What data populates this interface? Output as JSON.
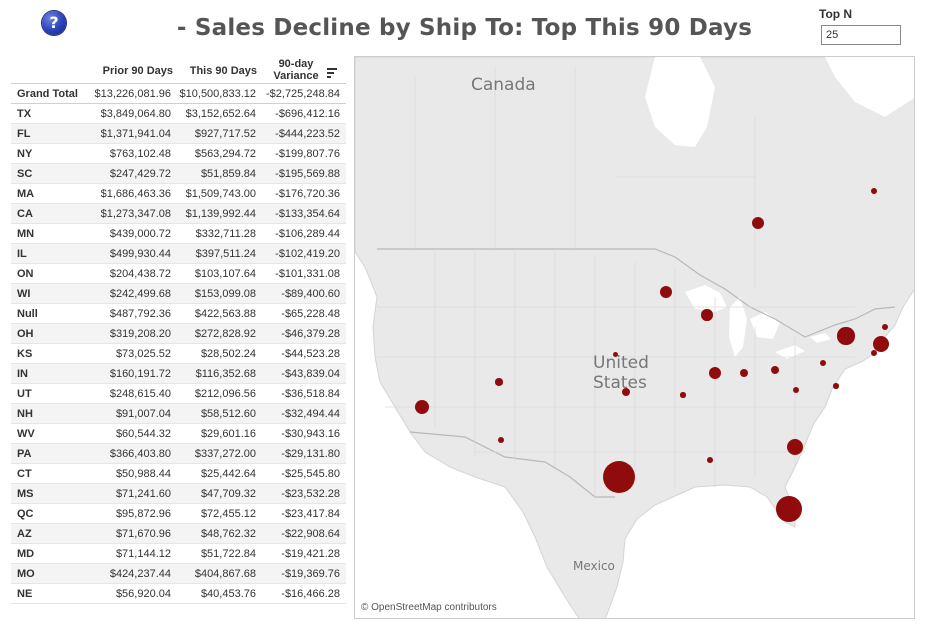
{
  "header": {
    "help_icon_glyph": "?",
    "title": "- Sales Decline by Ship To: Top This 90 Days",
    "topn_label": "Top N",
    "topn_value": "25"
  },
  "table": {
    "columns": [
      "Prior 90 Days",
      "This 90 Days",
      "90-day",
      "Variance"
    ],
    "grand_total": {
      "name": "Grand Total",
      "prior": "$13,226,081.96",
      "this": "$10,500,833.12",
      "variance": "-$2,725,248.84"
    },
    "rows": [
      {
        "name": "TX",
        "prior": "$3,849,064.80",
        "this": "$3,152,652.64",
        "variance": "-$696,412.16"
      },
      {
        "name": "FL",
        "prior": "$1,371,941.04",
        "this": "$927,717.52",
        "variance": "-$444,223.52"
      },
      {
        "name": "NY",
        "prior": "$763,102.48",
        "this": "$563,294.72",
        "variance": "-$199,807.76"
      },
      {
        "name": "SC",
        "prior": "$247,429.72",
        "this": "$51,859.84",
        "variance": "-$195,569.88"
      },
      {
        "name": "MA",
        "prior": "$1,686,463.36",
        "this": "$1,509,743.00",
        "variance": "-$176,720.36"
      },
      {
        "name": "CA",
        "prior": "$1,273,347.08",
        "this": "$1,139,992.44",
        "variance": "-$133,354.64"
      },
      {
        "name": "MN",
        "prior": "$439,000.72",
        "this": "$332,711.28",
        "variance": "-$106,289.44"
      },
      {
        "name": "IL",
        "prior": "$499,930.44",
        "this": "$397,511.24",
        "variance": "-$102,419.20"
      },
      {
        "name": "ON",
        "prior": "$204,438.72",
        "this": "$103,107.64",
        "variance": "-$101,331.08"
      },
      {
        "name": "WI",
        "prior": "$242,499.68",
        "this": "$153,099.08",
        "variance": "-$89,400.60"
      },
      {
        "name": "Null",
        "prior": "$487,792.36",
        "this": "$422,563.88",
        "variance": "-$65,228.48"
      },
      {
        "name": "OH",
        "prior": "$319,208.20",
        "this": "$272,828.92",
        "variance": "-$46,379.28"
      },
      {
        "name": "KS",
        "prior": "$73,025.52",
        "this": "$28,502.24",
        "variance": "-$44,523.28"
      },
      {
        "name": "IN",
        "prior": "$160,191.72",
        "this": "$116,352.68",
        "variance": "-$43,839.04"
      },
      {
        "name": "UT",
        "prior": "$248,615.40",
        "this": "$212,096.56",
        "variance": "-$36,518.84"
      },
      {
        "name": "NH",
        "prior": "$91,007.04",
        "this": "$58,512.60",
        "variance": "-$32,494.44"
      },
      {
        "name": "WV",
        "prior": "$60,544.32",
        "this": "$29,601.16",
        "variance": "-$30,943.16"
      },
      {
        "name": "PA",
        "prior": "$366,403.80",
        "this": "$337,272.00",
        "variance": "-$29,131.80"
      },
      {
        "name": "CT",
        "prior": "$50,988.44",
        "this": "$25,442.64",
        "variance": "-$25,545.80"
      },
      {
        "name": "MS",
        "prior": "$71,241.60",
        "this": "$47,709.32",
        "variance": "-$23,532.28"
      },
      {
        "name": "QC",
        "prior": "$95,872.96",
        "this": "$72,455.12",
        "variance": "-$23,417.84"
      },
      {
        "name": "AZ",
        "prior": "$71,670.96",
        "this": "$48,762.32",
        "variance": "-$22,908.64"
      },
      {
        "name": "MD",
        "prior": "$71,144.12",
        "this": "$51,722.84",
        "variance": "-$19,421.28"
      },
      {
        "name": "MO",
        "prior": "$424,237.44",
        "this": "$404,867.68",
        "variance": "-$19,369.76"
      },
      {
        "name": "NE",
        "prior": "$56,920.04",
        "this": "$40,453.76",
        "variance": "-$16,466.28"
      }
    ]
  },
  "map": {
    "labels": {
      "canada": "Canada",
      "us_line1": "United",
      "us_line2": "States",
      "mexico": "Mexico"
    },
    "attribution": "© OpenStreetMap contributors",
    "bubble_color": "#8b0000",
    "bubbles": [
      {
        "state": "TX",
        "variance": -696412.16
      },
      {
        "state": "FL",
        "variance": -444223.52
      },
      {
        "state": "NY",
        "variance": -199807.76
      },
      {
        "state": "SC",
        "variance": -195569.88
      },
      {
        "state": "MA",
        "variance": -176720.36
      },
      {
        "state": "CA",
        "variance": -133354.64
      },
      {
        "state": "MN",
        "variance": -106289.44
      },
      {
        "state": "IL",
        "variance": -102419.2
      },
      {
        "state": "ON",
        "variance": -101331.08
      },
      {
        "state": "WI",
        "variance": -89400.6
      },
      {
        "state": "OH",
        "variance": -46379.28
      },
      {
        "state": "KS",
        "variance": -44523.28
      },
      {
        "state": "IN",
        "variance": -43839.04
      },
      {
        "state": "UT",
        "variance": -36518.84
      },
      {
        "state": "NH",
        "variance": -32494.44
      },
      {
        "state": "WV",
        "variance": -30943.16
      },
      {
        "state": "PA",
        "variance": -29131.8
      },
      {
        "state": "CT",
        "variance": -25545.8
      },
      {
        "state": "MS",
        "variance": -23532.28
      },
      {
        "state": "QC",
        "variance": -23417.84
      },
      {
        "state": "AZ",
        "variance": -22908.64
      },
      {
        "state": "MD",
        "variance": -19421.28
      },
      {
        "state": "MO",
        "variance": -19369.76
      },
      {
        "state": "NE",
        "variance": -16466.28
      }
    ]
  }
}
